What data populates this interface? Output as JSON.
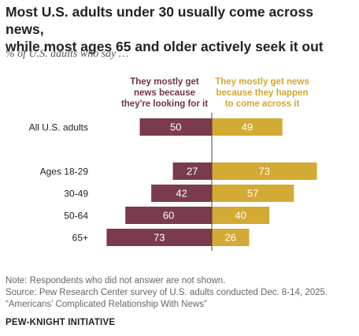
{
  "title_line1": "Most U.S. adults under 30 usually come across news,",
  "title_line2": "while most ages 65 and older actively seek it out",
  "subtitle": "% of U.S. adults who say …",
  "colors": {
    "left": "#7a3b4c",
    "right": "#d3aa34",
    "label_left": "#6e3645",
    "label_right": "#d1a72f"
  },
  "chart_data": {
    "type": "bar",
    "orientation": "horizontal-diverging",
    "categories": [
      "All U.S. adults",
      "Ages 18-29",
      "30-49",
      "50-64",
      "65+"
    ],
    "series": [
      {
        "name": "They mostly get news because they're looking for it",
        "values": [
          50,
          27,
          42,
          60,
          73
        ]
      },
      {
        "name": "They mostly get news because they happen to come across it",
        "values": [
          49,
          73,
          57,
          40,
          26
        ]
      }
    ],
    "series_label_lines": [
      [
        "They mostly get",
        "news because",
        "they're looking for it"
      ],
      [
        "They mostly get news",
        "because they happen",
        "to come across it"
      ]
    ]
  },
  "notes": {
    "note": "Note: Respondents who did not answer are not shown.",
    "source_line1": "Source: Pew Research Center survey of U.S. adults conducted Dec. 8-14, 2025.",
    "source_line2": "“Americans’ Complicated Relationship With News”"
  },
  "brand": "PEW-KNIGHT INITIATIVE"
}
